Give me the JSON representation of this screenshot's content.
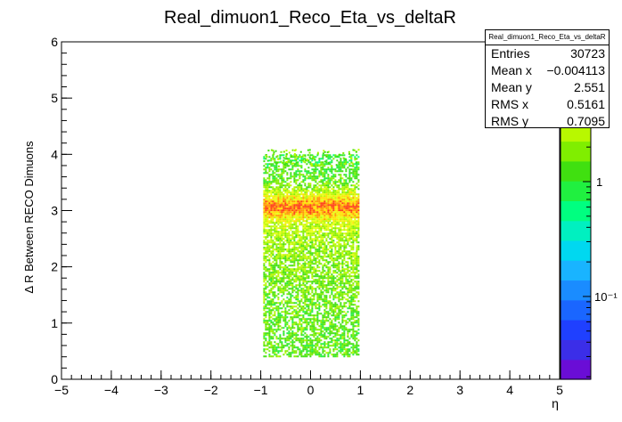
{
  "chart_data": {
    "type": "heatmap",
    "title": "Real_dimuon1_Reco_Eta_vs_deltaR",
    "xlabel": "η",
    "ylabel": "Δ R Between RECO Dimuons",
    "xlim": [
      -5,
      5
    ],
    "ylim": [
      0,
      6
    ],
    "x_ticks": [
      "−5",
      "−4",
      "−3",
      "−2",
      "−1",
      "0",
      "1",
      "2",
      "3",
      "4",
      "5"
    ],
    "y_ticks": [
      "0",
      "1",
      "2",
      "3",
      "4",
      "5",
      "6"
    ],
    "z_scale": "log",
    "z_tick_labels": [
      "1",
      "10⁻¹"
    ],
    "occupied_region": {
      "x": [
        -0.95,
        0.95
      ],
      "y": [
        0.4,
        4.0
      ]
    },
    "peak_band": {
      "x": [
        -0.95,
        0.95
      ],
      "y": [
        2.95,
        3.2
      ]
    },
    "density_profile": [
      {
        "y": 0.5,
        "level": 0.28
      },
      {
        "y": 1.0,
        "level": 0.3
      },
      {
        "y": 1.5,
        "level": 0.33
      },
      {
        "y": 2.0,
        "level": 0.38
      },
      {
        "y": 2.5,
        "level": 0.45
      },
      {
        "y": 2.8,
        "level": 0.55
      },
      {
        "y": 3.0,
        "level": 0.85
      },
      {
        "y": 3.1,
        "level": 0.95
      },
      {
        "y": 3.25,
        "level": 0.65
      },
      {
        "y": 3.5,
        "level": 0.32
      },
      {
        "y": 3.8,
        "level": 0.22
      },
      {
        "y": 4.0,
        "level": 0.15
      }
    ],
    "stats": {
      "name": "Real_dimuon1_Reco_Eta_vs_deltaR",
      "entries_label": "Entries",
      "entries": "30723",
      "mean_x_label": "Mean x",
      "mean_x": "−0.004113",
      "mean_y_label": "Mean y",
      "mean_y": "2.551",
      "rms_x_label": "RMS x",
      "rms_x": "0.5161",
      "rms_y_label": "RMS y",
      "rms_y": "0.7095"
    },
    "palette": [
      "#6a0dd6",
      "#3b2ee8",
      "#1f40ff",
      "#1a66ff",
      "#1a8cff",
      "#19b4ff",
      "#00d8f0",
      "#00f0c0",
      "#00ff80",
      "#20f040",
      "#40e010",
      "#80ee00",
      "#b8f800",
      "#e8ff10",
      "#ffe000",
      "#ff9800",
      "#ff4010"
    ],
    "grid": false
  }
}
